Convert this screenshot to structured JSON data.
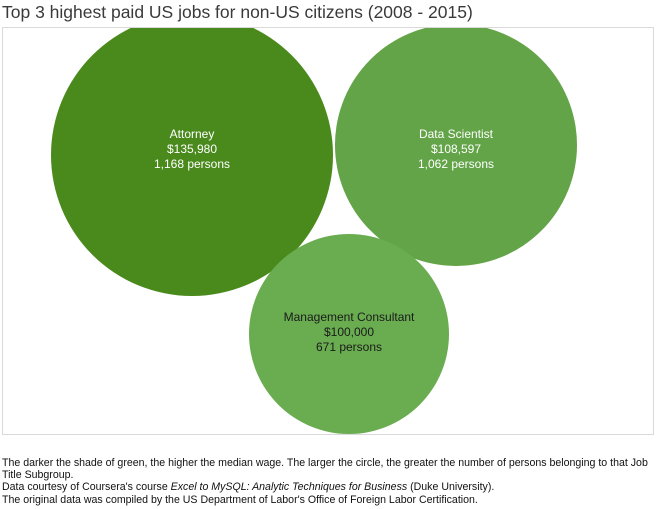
{
  "chart_data": {
    "type": "bubble",
    "title": "Top 3 highest paid US jobs for non-US citizens (2008 - 2015)",
    "bubbles": [
      {
        "job": "Attorney",
        "wage": "$135,980",
        "persons": "1,168 persons",
        "wage_value": 135980,
        "persons_value": 1168,
        "color": "#4a8a1c"
      },
      {
        "job": "Data Scientist",
        "wage": "$108,597",
        "persons": "1,062 persons",
        "wage_value": 108597,
        "persons_value": 1062,
        "color": "#62a447"
      },
      {
        "job": "Management Consultant",
        "wage": "$100,000",
        "persons": "671 persons",
        "wage_value": 100000,
        "persons_value": 671,
        "color": "#6aad51"
      }
    ]
  },
  "footnotes": {
    "line1": "The darker the shade of green, the higher the median wage. The larger the circle, the greater the number of persons belonging to that Job Title Subgroup.",
    "line2_prefix": "Data courtesy of Coursera's course ",
    "line2_course": "Excel to MySQL: Analytic Techniques for Business",
    "line2_suffix": " (Duke University).",
    "line3": "The original data was compiled by the US Department of Labor's Office of Foreign Labor Certification."
  }
}
